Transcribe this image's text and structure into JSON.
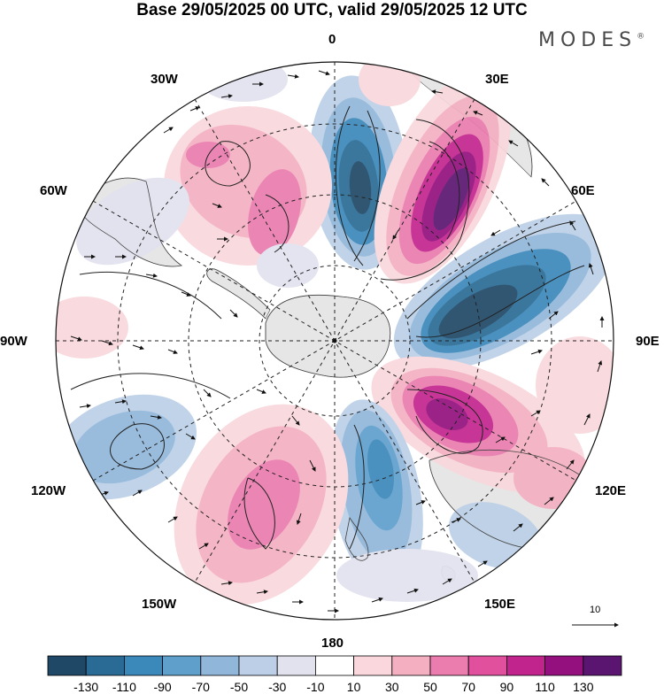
{
  "title": "Base 29/05/2025 00 UTC, valid 29/05/2025 12 UTC",
  "brand": "MODES",
  "brand_mark": "®",
  "longitude_labels": {
    "lon_0": "0",
    "lon_30e": "30E",
    "lon_60e": "60E",
    "lon_90e": "90E",
    "lon_120e": "120E",
    "lon_150e": "150E",
    "lon_180": "180",
    "lon_150w": "150W",
    "lon_120w": "120W",
    "lon_90w": "90W",
    "lon_60w": "60W",
    "lon_30w": "30W"
  },
  "vector_scale_label": "10",
  "colorbar": {
    "ticks": [
      "-130",
      "-110",
      "-90",
      "-70",
      "-50",
      "-30",
      "-10",
      "10",
      "30",
      "50",
      "70",
      "90",
      "110",
      "130"
    ],
    "colors": [
      "#1f4766",
      "#2a6b95",
      "#3b88ba",
      "#5e9fcc",
      "#90b7da",
      "#bccfe6",
      "#e2e2ef",
      "#ffffff",
      "#f9d7dc",
      "#f4b0c1",
      "#ea7cae",
      "#e0509d",
      "#c2248d",
      "#93107e",
      "#5a1570"
    ]
  },
  "map": {
    "anomalies": [
      {
        "value": -130,
        "color": "#1f4766"
      },
      {
        "value": 130,
        "color": "#5a1570"
      }
    ],
    "land_color": "#e8e8e8",
    "projection": "south-polar-stereographic"
  }
}
